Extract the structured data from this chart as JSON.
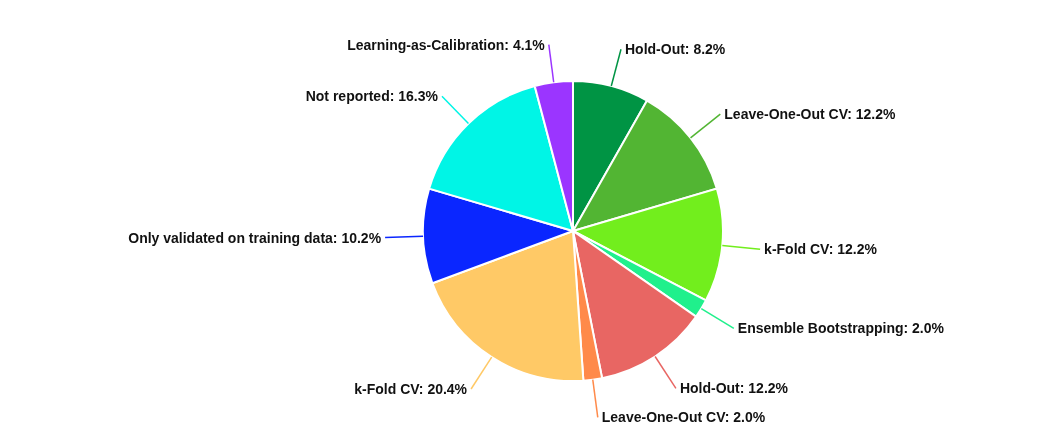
{
  "chart_data": {
    "type": "pie",
    "categories": [
      "Hold-Out",
      "Leave-One-Out CV",
      "k-Fold CV",
      "Ensemble Bootstrapping",
      "Hold-Out",
      "Leave-One-Out CV",
      "k-Fold CV",
      "Only validated on training data",
      "Not reported",
      "Learning-as-Calibration"
    ],
    "values": [
      8.2,
      12.2,
      12.2,
      2.0,
      12.2,
      2.0,
      20.4,
      10.2,
      16.3,
      4.1
    ],
    "value_labels": [
      "8.2%",
      "12.2%",
      "12.2%",
      "2.0%",
      "12.2%",
      "2.0%",
      "20.4%",
      "10.2%",
      "16.3%",
      "4.1%"
    ],
    "colors": [
      "#009444",
      "#52b533",
      "#72ee1d",
      "#20f08c",
      "#e86663",
      "#ff8a4a",
      "#ffc966",
      "#0a26ff",
      "#00f5e6",
      "#9b35ff"
    ],
    "legend": false
  }
}
